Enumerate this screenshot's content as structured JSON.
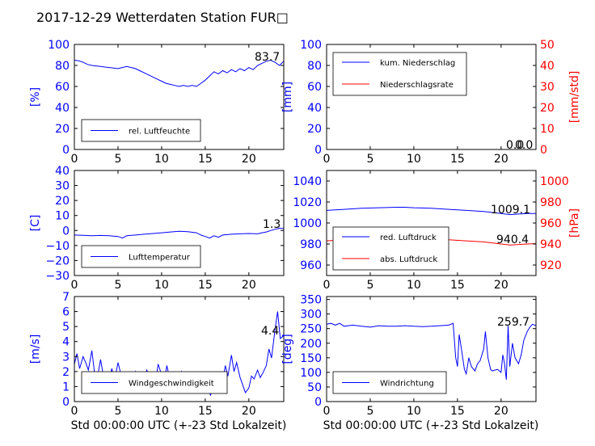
{
  "title": "2017-12-29 Wetterdaten Station FUR□",
  "xlabel": "Std 00:00:00 UTC (+-23 Std Lokalzeit)",
  "colors": {
    "left_axis": "#0000ff",
    "right_axis": "#ff0000",
    "line_blue": "#0000ff",
    "line_red": "#ff0000",
    "text": "#000000"
  },
  "chart_data": [
    {
      "type": "line",
      "position": "top-left",
      "ylabel": "[%]",
      "xlim": [
        0,
        24
      ],
      "ylim": [
        0,
        100
      ],
      "xticks": [
        "0",
        "5",
        "10",
        "15",
        "20"
      ],
      "yticks": [
        "0",
        "20",
        "40",
        "60",
        "80",
        "100"
      ],
      "legend": [
        "rel. Luftfeuchte"
      ],
      "annotation": "83.7",
      "series": [
        {
          "name": "rel. Luftfeuchte",
          "color": "blue",
          "x": [
            0,
            0.5,
            1,
            1.5,
            2,
            3,
            4,
            5,
            6,
            7,
            7.5,
            8,
            8.5,
            9,
            9.5,
            10,
            10.5,
            11,
            11.5,
            12,
            12.5,
            13,
            13.5,
            14,
            14.5,
            15,
            15.5,
            16,
            16.5,
            17,
            17.5,
            18,
            18.5,
            19,
            19.5,
            20,
            20.5,
            21,
            21.5,
            22,
            22.5,
            23,
            23.5,
            24
          ],
          "y": [
            85,
            84.5,
            83,
            81,
            80,
            79,
            78,
            77,
            79,
            77,
            75,
            73,
            71,
            69,
            67,
            65,
            63,
            62,
            61,
            60,
            61,
            60,
            61,
            60,
            63,
            66,
            70,
            74,
            72,
            75,
            73,
            76,
            74,
            77,
            75,
            78,
            76,
            80,
            82,
            84,
            85,
            83,
            80,
            84
          ]
        }
      ]
    },
    {
      "type": "line",
      "position": "top-right",
      "ylabel": "[mm]",
      "ylabel_right": "[mm/std]",
      "xlim": [
        0,
        24
      ],
      "ylim": [
        0,
        100
      ],
      "ylim_right": [
        0,
        50
      ],
      "xticks": [
        "0",
        "5",
        "10",
        "15",
        "20"
      ],
      "yticks": [
        "0",
        "20",
        "40",
        "60",
        "80",
        "100"
      ],
      "yticks_right": [
        "0",
        "10",
        "20",
        "30",
        "40",
        "50"
      ],
      "legend": [
        "kum. Niederschlag",
        "Niederschlagsrate"
      ],
      "annotation": "0.0",
      "annotation2": "0.0",
      "series": [
        {
          "name": "kum. Niederschlag",
          "color": "blue",
          "x": [
            0,
            24
          ],
          "y": [
            0,
            0
          ]
        },
        {
          "name": "Niederschlagsrate",
          "color": "red",
          "x": [
            0,
            24
          ],
          "y": [
            0,
            0
          ]
        }
      ]
    },
    {
      "type": "line",
      "position": "middle-left",
      "ylabel": "[C]",
      "xlim": [
        0,
        24
      ],
      "ylim": [
        -30,
        40
      ],
      "xticks": [
        "0",
        "5",
        "10",
        "15",
        "20"
      ],
      "yticks": [
        "−30",
        "−20",
        "−10",
        "0",
        "10",
        "20",
        "30",
        "40"
      ],
      "legend": [
        "Lufttemperatur"
      ],
      "annotation": "1.3",
      "series": [
        {
          "name": "Lufttemperatur",
          "color": "blue",
          "x": [
            0,
            1,
            2,
            3,
            4,
            5,
            5.5,
            6,
            7,
            8,
            9,
            10,
            11,
            12,
            13,
            14,
            14.5,
            15,
            15.5,
            16,
            16.5,
            17,
            18,
            19,
            20,
            21,
            21.5,
            22,
            22.5,
            23,
            23.5,
            24
          ],
          "y": [
            -3,
            -3.2,
            -3.5,
            -3.3,
            -3.5,
            -4,
            -5,
            -3.5,
            -3,
            -2.5,
            -2,
            -1.5,
            -1,
            -0.5,
            -0.8,
            -1.5,
            -3,
            -4,
            -5,
            -3.5,
            -4.5,
            -3,
            -2.5,
            -2.2,
            -2,
            -2.2,
            -1.5,
            -1,
            0,
            0.8,
            1.5,
            1.3
          ]
        }
      ]
    },
    {
      "type": "line",
      "position": "middle-right",
      "ylabel": "",
      "ylabel_right": "[hPa]",
      "xlim": [
        0,
        24
      ],
      "ylim": [
        950,
        1050
      ],
      "ylim_right": [
        910,
        1010
      ],
      "xticks": [
        "0",
        "5",
        "10",
        "15",
        "20"
      ],
      "yticks": [
        "960",
        "980",
        "1000",
        "1020",
        "1040"
      ],
      "yticks_right": [
        "920",
        "940",
        "960",
        "980",
        "1000"
      ],
      "legend": [
        "red. Luftdruck",
        "abs. Luftdruck"
      ],
      "annotation": "1009.1",
      "annotation2": "940.4",
      "series": [
        {
          "name": "red. Luftdruck",
          "color": "blue",
          "axis": "left",
          "x": [
            0,
            2,
            4,
            6,
            8,
            9,
            10,
            12,
            14,
            16,
            18,
            20,
            21,
            22,
            23,
            24
          ],
          "y": [
            1012,
            1013,
            1014,
            1014.5,
            1015,
            1015,
            1014.5,
            1014,
            1013,
            1012,
            1011,
            1009,
            1008,
            1008.5,
            1009,
            1009.1
          ]
        },
        {
          "name": "abs. Luftdruck",
          "color": "red",
          "axis": "right",
          "x": [
            0,
            2,
            4,
            6,
            8,
            9,
            10,
            12,
            14,
            16,
            18,
            20,
            21,
            22,
            23,
            24
          ],
          "y": [
            943,
            944,
            945,
            945.5,
            946,
            946,
            945.5,
            945,
            944,
            943,
            942,
            940,
            939,
            939.5,
            940,
            940.4
          ]
        }
      ]
    },
    {
      "type": "line",
      "position": "bottom-left",
      "ylabel": "[m/s]",
      "xlim": [
        0,
        24
      ],
      "ylim": [
        0,
        7
      ],
      "xticks": [
        "0",
        "5",
        "10",
        "15",
        "20"
      ],
      "yticks": [
        "0",
        "1",
        "2",
        "3",
        "4",
        "5",
        "6",
        "7"
      ],
      "legend": [
        "Windgeschwindigkeit"
      ],
      "annotation": "4.4",
      "series": [
        {
          "name": "Windgeschwindigkeit",
          "color": "blue",
          "x": [
            0,
            0.3,
            0.6,
            1,
            1.3,
            1.6,
            2,
            2.3,
            2.6,
            3,
            3.3,
            3.6,
            4,
            4.3,
            4.6,
            5,
            5.3,
            5.6,
            6,
            6.3,
            6.6,
            7,
            7.3,
            7.6,
            8,
            8.3,
            8.6,
            9,
            9.3,
            9.6,
            10,
            10.3,
            10.6,
            11,
            11.3,
            11.6,
            12,
            12.3,
            12.6,
            13,
            13.3,
            13.6,
            14,
            14.3,
            14.6,
            15,
            15.3,
            15.6,
            16,
            16.3,
            16.6,
            17,
            17.3,
            17.6,
            18,
            18.3,
            18.6,
            19,
            19.3,
            19.6,
            20,
            20.3,
            20.6,
            21,
            21.3,
            21.6,
            22,
            22.3,
            22.6,
            23,
            23.3,
            23.6,
            24
          ],
          "y": [
            2.5,
            3.2,
            2.2,
            3.0,
            2.6,
            2.1,
            3.4,
            2.0,
            1.5,
            2.8,
            1.8,
            1.2,
            1.6,
            2.2,
            1.4,
            2.6,
            1.9,
            1.3,
            1.7,
            1.9,
            1.4,
            2.0,
            1.3,
            1.8,
            1.5,
            2.1,
            1.6,
            1.7,
            1.2,
            2.5,
            1.8,
            1.4,
            2.4,
            1.3,
            1.8,
            1.1,
            1.6,
            2.0,
            1.2,
            1.7,
            1.9,
            1.0,
            1.4,
            0.8,
            1.6,
            0.6,
            1.2,
            0.4,
            1.5,
            1.0,
            1.8,
            1.3,
            2.4,
            1.7,
            3.1,
            2.0,
            2.6,
            1.6,
            1.1,
            0.6,
            0.9,
            1.7,
            1.5,
            2.1,
            1.6,
            1.9,
            2.4,
            3.5,
            2.9,
            4.8,
            6.0,
            4.2,
            4.4
          ]
        }
      ]
    },
    {
      "type": "line",
      "position": "bottom-right",
      "ylabel": "[deg]",
      "xlim": [
        0,
        24
      ],
      "ylim": [
        0,
        360
      ],
      "xticks": [
        "0",
        "5",
        "10",
        "15",
        "20"
      ],
      "yticks": [
        "0",
        "50",
        "100",
        "150",
        "200",
        "250",
        "300",
        "350"
      ],
      "legend": [
        "Windrichtung"
      ],
      "annotation": "259.7",
      "series": [
        {
          "name": "Windrichtung",
          "color": "blue",
          "x": [
            0,
            0.5,
            1,
            1.5,
            2,
            3,
            4,
            5,
            6,
            7,
            8,
            9,
            10,
            11,
            12,
            13,
            14,
            14.5,
            14.8,
            15,
            15.2,
            15.5,
            15.8,
            16,
            16.3,
            16.6,
            17,
            17.3,
            17.6,
            18,
            18.2,
            18.5,
            18.8,
            19,
            19.3,
            19.6,
            20,
            20.2,
            20.4,
            20.6,
            20.8,
            21,
            21.3,
            21.6,
            22,
            22.3,
            22.6,
            23,
            23.3,
            23.6,
            24
          ],
          "y": [
            265,
            268,
            262,
            268,
            258,
            262,
            258,
            255,
            260,
            258,
            258,
            260,
            258,
            257,
            258,
            260,
            262,
            268,
            150,
            120,
            230,
            170,
            110,
            95,
            150,
            120,
            105,
            130,
            140,
            180,
            240,
            150,
            110,
            105,
            108,
            110,
            100,
            160,
            130,
            75,
            260,
            120,
            200,
            150,
            130,
            160,
            210,
            240,
            255,
            265,
            260
          ]
        }
      ]
    }
  ]
}
